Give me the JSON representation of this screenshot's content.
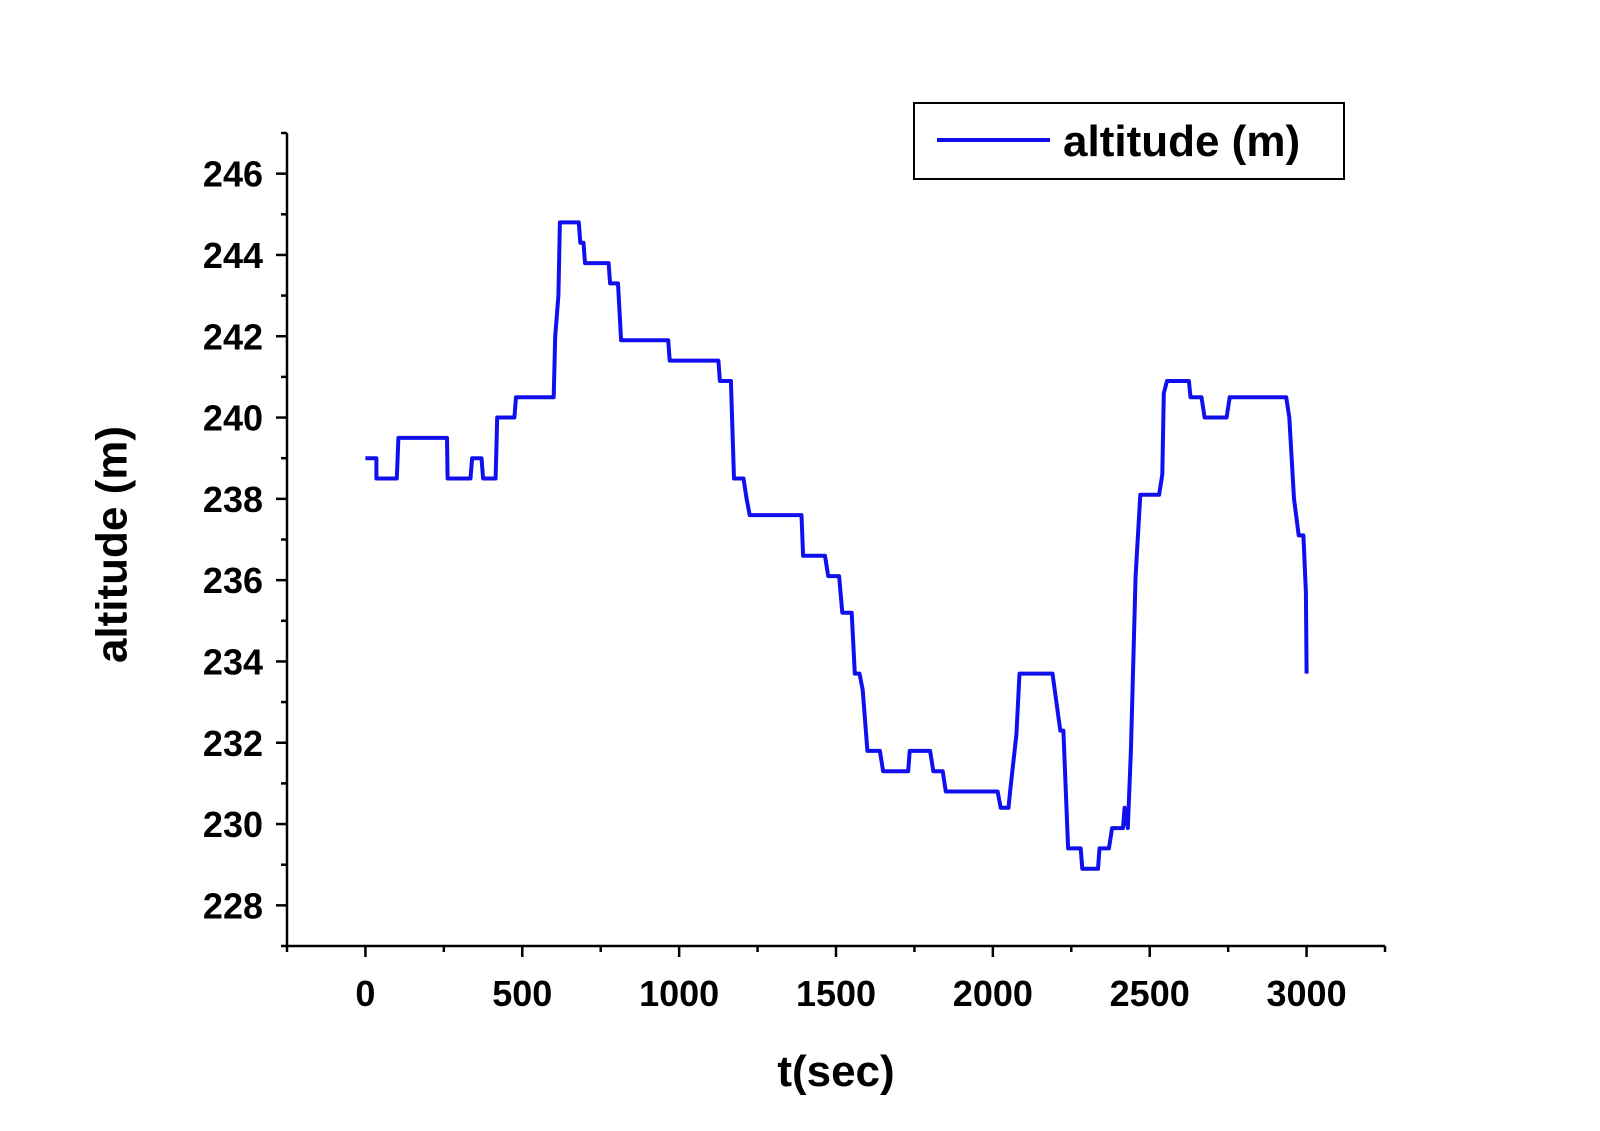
{
  "chart_data": {
    "type": "line",
    "xlabel": "t(sec)",
    "ylabel": "altitude (m)",
    "xlim": [
      -250,
      3250
    ],
    "ylim": [
      227,
      247
    ],
    "x_ticks": [
      0,
      500,
      1000,
      1500,
      2000,
      2500,
      3000
    ],
    "y_ticks": [
      228,
      230,
      232,
      234,
      236,
      238,
      240,
      242,
      244,
      246
    ],
    "grid": false,
    "legend_position": "top-right",
    "colors": {
      "series": "#1010ee",
      "axis": "#000000"
    },
    "series": [
      {
        "name": "altitude (m)",
        "points": [
          [
            0,
            239.0
          ],
          [
            35,
            239.0
          ],
          [
            35,
            238.5
          ],
          [
            100,
            238.5
          ],
          [
            105,
            239.5
          ],
          [
            260,
            239.5
          ],
          [
            262,
            238.5
          ],
          [
            335,
            238.5
          ],
          [
            340,
            239.0
          ],
          [
            370,
            239.0
          ],
          [
            375,
            238.5
          ],
          [
            415,
            238.5
          ],
          [
            420,
            240.0
          ],
          [
            475,
            240.0
          ],
          [
            480,
            240.5
          ],
          [
            600,
            240.5
          ],
          [
            605,
            242.0
          ],
          [
            615,
            243.0
          ],
          [
            620,
            244.8
          ],
          [
            680,
            244.8
          ],
          [
            685,
            244.3
          ],
          [
            695,
            244.3
          ],
          [
            700,
            243.8
          ],
          [
            775,
            243.8
          ],
          [
            780,
            243.3
          ],
          [
            805,
            243.3
          ],
          [
            815,
            241.9
          ],
          [
            965,
            241.9
          ],
          [
            970,
            241.4
          ],
          [
            1125,
            241.4
          ],
          [
            1130,
            240.9
          ],
          [
            1165,
            240.9
          ],
          [
            1175,
            238.5
          ],
          [
            1205,
            238.5
          ],
          [
            1215,
            238.0
          ],
          [
            1225,
            237.6
          ],
          [
            1390,
            237.6
          ],
          [
            1395,
            236.6
          ],
          [
            1465,
            236.6
          ],
          [
            1475,
            236.1
          ],
          [
            1510,
            236.1
          ],
          [
            1520,
            235.2
          ],
          [
            1550,
            235.2
          ],
          [
            1560,
            233.7
          ],
          [
            1575,
            233.7
          ],
          [
            1585,
            233.3
          ],
          [
            1600,
            231.8
          ],
          [
            1640,
            231.8
          ],
          [
            1650,
            231.3
          ],
          [
            1730,
            231.3
          ],
          [
            1735,
            231.8
          ],
          [
            1800,
            231.8
          ],
          [
            1810,
            231.3
          ],
          [
            1840,
            231.3
          ],
          [
            1850,
            230.8
          ],
          [
            2015,
            230.8
          ],
          [
            2025,
            230.4
          ],
          [
            2050,
            230.4
          ],
          [
            2055,
            230.8
          ],
          [
            2075,
            232.2
          ],
          [
            2085,
            233.7
          ],
          [
            2190,
            233.7
          ],
          [
            2215,
            232.3
          ],
          [
            2225,
            232.3
          ],
          [
            2240,
            229.4
          ],
          [
            2280,
            229.4
          ],
          [
            2285,
            228.9
          ],
          [
            2335,
            228.9
          ],
          [
            2340,
            229.4
          ],
          [
            2370,
            229.4
          ],
          [
            2380,
            229.9
          ],
          [
            2415,
            229.9
          ],
          [
            2420,
            230.4
          ],
          [
            2430,
            229.9
          ],
          [
            2440,
            231.8
          ],
          [
            2455,
            236.1
          ],
          [
            2470,
            238.1
          ],
          [
            2530,
            238.1
          ],
          [
            2540,
            238.6
          ],
          [
            2545,
            240.6
          ],
          [
            2555,
            240.9
          ],
          [
            2625,
            240.9
          ],
          [
            2630,
            240.5
          ],
          [
            2665,
            240.5
          ],
          [
            2675,
            240.0
          ],
          [
            2745,
            240.0
          ],
          [
            2755,
            240.5
          ],
          [
            2935,
            240.5
          ],
          [
            2945,
            240.0
          ],
          [
            2960,
            238.0
          ],
          [
            2975,
            237.1
          ],
          [
            2990,
            237.1
          ],
          [
            2998,
            235.7
          ],
          [
            3000,
            233.7
          ]
        ]
      }
    ]
  }
}
